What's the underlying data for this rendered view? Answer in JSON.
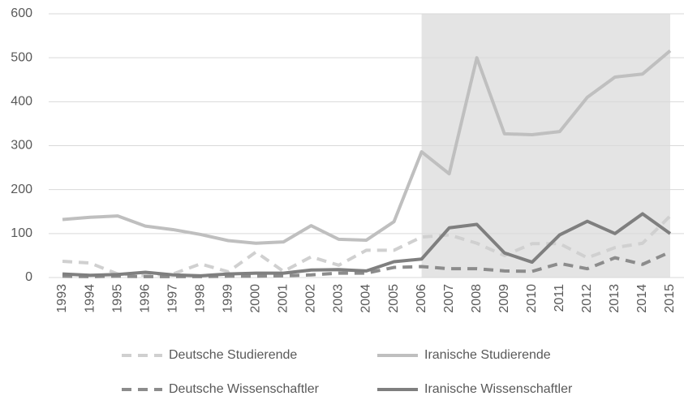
{
  "chart_data": {
    "type": "line",
    "categories": [
      "1993",
      "1994",
      "1995",
      "1996",
      "1997",
      "1998",
      "1999",
      "2000",
      "2001",
      "2002",
      "2003",
      "2004",
      "2005",
      "2006",
      "2007",
      "2008",
      "2009",
      "2010",
      "2011",
      "2012",
      "2013",
      "2014",
      "2015"
    ],
    "series": [
      {
        "name": "Deutsche Studierende",
        "color": "#d0d0d0",
        "dashed": true,
        "values": [
          37,
          33,
          8,
          5,
          8,
          31,
          13,
          58,
          14,
          47,
          28,
          62,
          62,
          92,
          97,
          78,
          50,
          77,
          77,
          45,
          68,
          78,
          140
        ]
      },
      {
        "name": "Iranische Studierende",
        "color": "#bfbfbf",
        "dashed": false,
        "values": [
          132,
          137,
          140,
          117,
          109,
          98,
          84,
          78,
          81,
          118,
          87,
          85,
          127,
          286,
          236,
          500,
          327,
          325,
          332,
          410,
          456,
          463,
          516
        ]
      },
      {
        "name": "Deutsche Wissenschaftler",
        "color": "#8c8c8c",
        "dashed": true,
        "values": [
          3,
          2,
          3,
          2,
          2,
          2,
          3,
          3,
          4,
          6,
          10,
          10,
          23,
          25,
          20,
          20,
          15,
          14,
          32,
          20,
          45,
          30,
          58
        ]
      },
      {
        "name": "Iranische Wissenschaftler",
        "color": "#7f7f7f",
        "dashed": false,
        "values": [
          8,
          5,
          7,
          12,
          6,
          4,
          8,
          10,
          10,
          17,
          18,
          15,
          36,
          42,
          113,
          121,
          56,
          35,
          97,
          128,
          100,
          145,
          100
        ]
      }
    ],
    "shaded_range": [
      "2006",
      "2015"
    ],
    "shade_color": "#e4e4e4",
    "ylim": [
      0,
      600
    ],
    "yticks": [
      0,
      100,
      200,
      300,
      400,
      500,
      600
    ],
    "grid": true
  }
}
